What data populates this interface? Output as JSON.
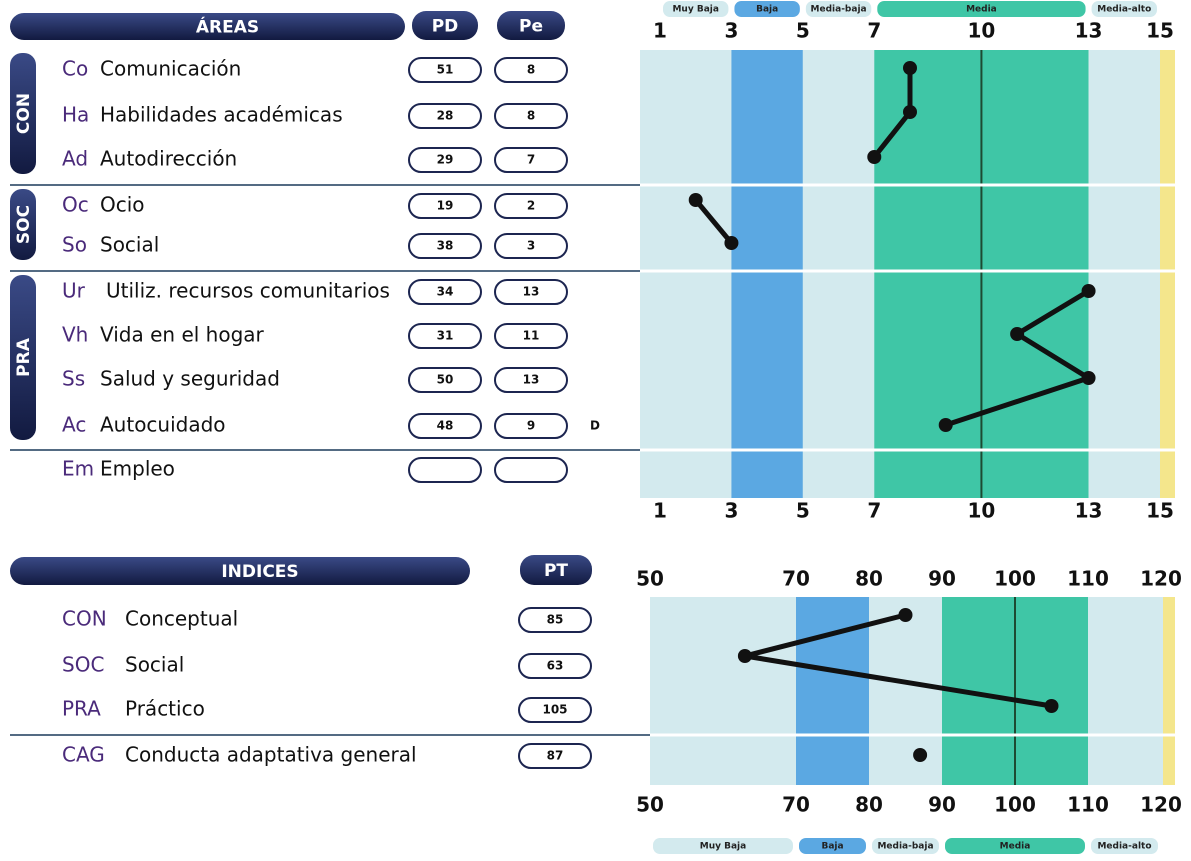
{
  "chart_data": [
    {
      "type": "line",
      "header": "ÁREAS",
      "columns": [
        "PD",
        "Pe"
      ],
      "groups": [
        {
          "name": "CON",
          "codes": [
            "Co",
            "Ha",
            "Ad"
          ],
          "labels": [
            "Comunicación",
            "Habilidades académicas",
            "Autodirección"
          ],
          "pd": [
            51,
            28,
            29
          ],
          "values": [
            8,
            8,
            7
          ],
          "flags": [
            null,
            null,
            null
          ]
        },
        {
          "name": "SOC",
          "codes": [
            "Oc",
            "So"
          ],
          "labels": [
            "Ocio",
            "Social"
          ],
          "pd": [
            19,
            38
          ],
          "values": [
            2,
            3
          ],
          "flags": [
            null,
            null
          ]
        },
        {
          "name": "PRA",
          "codes": [
            "Ur",
            "Vh",
            "Ss",
            "Ac"
          ],
          "labels": [
            "Utiliz. recursos comunitarios",
            "Vida en el hogar",
            "Salud y seguridad",
            "Autocuidado"
          ],
          "pd": [
            34,
            31,
            50,
            48
          ],
          "values": [
            13,
            11,
            13,
            9
          ],
          "flags": [
            null,
            null,
            null,
            "D"
          ]
        },
        {
          "name": null,
          "codes": [
            "Em"
          ],
          "labels": [
            "Empleo"
          ],
          "pd": [
            null
          ],
          "values": [
            null
          ],
          "flags": [
            null
          ]
        }
      ],
      "xlim": [
        1,
        15
      ],
      "xticks": [
        1,
        3,
        5,
        7,
        10,
        13,
        15
      ],
      "refline": 10,
      "bands": [
        {
          "name": "Muy Baja",
          "range": [
            1,
            3
          ],
          "color": "#d3eaee"
        },
        {
          "name": "Baja",
          "range": [
            3,
            5
          ],
          "color": "#5ba8e2"
        },
        {
          "name": "Media-baja",
          "range": [
            5,
            7
          ],
          "color": "#d3eaee"
        },
        {
          "name": "Media",
          "range": [
            7,
            13
          ],
          "color": "#3fc6a6"
        },
        {
          "name": "Media-alto",
          "range": [
            13,
            15
          ],
          "color": "#d3eaee"
        }
      ]
    },
    {
      "type": "line",
      "header": "INDICES",
      "columns": [
        "PT"
      ],
      "groups": [
        {
          "codes": [
            "CON",
            "SOC",
            "PRA"
          ],
          "labels": [
            "Conceptual",
            "Social",
            "Práctico"
          ],
          "values": [
            85,
            63,
            105
          ]
        },
        {
          "codes": [
            "CAG"
          ],
          "labels": [
            "Conducta adaptativa general"
          ],
          "values": [
            87
          ]
        }
      ],
      "xlim": [
        50,
        120
      ],
      "xticks": [
        50,
        70,
        80,
        90,
        100,
        110,
        120
      ],
      "refline": 100,
      "bands": [
        {
          "name": "Muy Baja",
          "range": [
            50,
            70
          ],
          "color": "#d3eaee"
        },
        {
          "name": "Baja",
          "range": [
            70,
            80
          ],
          "color": "#5ba8e2"
        },
        {
          "name": "Media-baja",
          "range": [
            80,
            90
          ],
          "color": "#d3eaee"
        },
        {
          "name": "Media",
          "range": [
            90,
            110
          ],
          "color": "#3fc6a6"
        },
        {
          "name": "Media-alto",
          "range": [
            110,
            120
          ],
          "color": "#d3eaee"
        }
      ]
    }
  ]
}
